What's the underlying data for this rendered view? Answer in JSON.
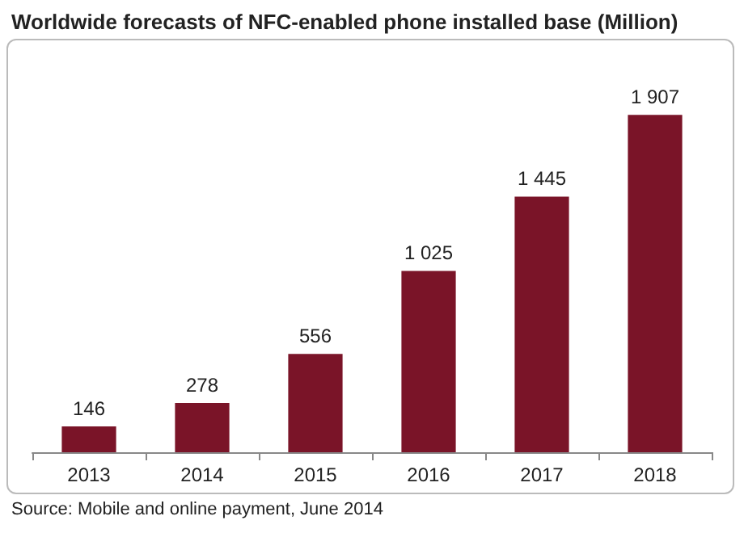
{
  "chart_data": {
    "type": "bar",
    "title": "Worldwide forecasts of NFC-enabled phone installed base (Million)",
    "categories": [
      "2013",
      "2014",
      "2015",
      "2016",
      "2017",
      "2018"
    ],
    "values": [
      146,
      278,
      556,
      1025,
      1445,
      1907
    ],
    "value_labels": [
      "146",
      "278",
      "556",
      "1 025",
      "1 445",
      "1 907"
    ],
    "color": "#7a1428",
    "annotations": [
      "Source: Mobile and online payment, June 2014"
    ]
  }
}
